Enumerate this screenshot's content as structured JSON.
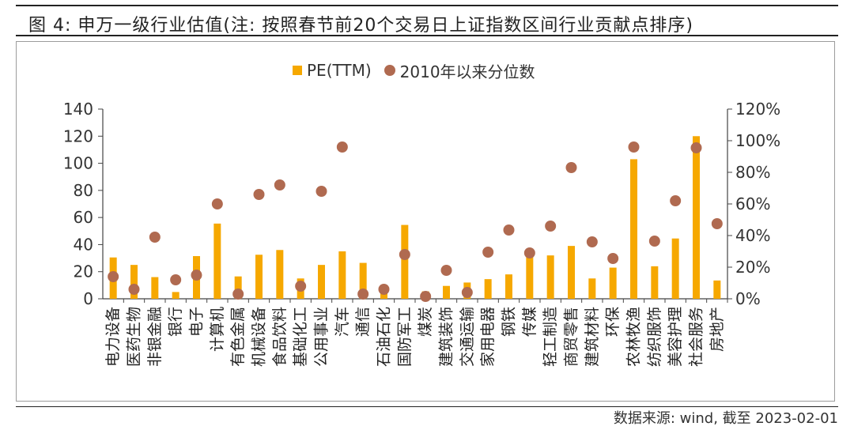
{
  "title": "图 4: 申万一级行业估值(注: 按照春节前20个交易日上证指数区间行业贡献点排序)",
  "source": "数据来源: wind, 截至 2023-02-01",
  "colors": {
    "bar": "#f6a800",
    "dot": "#b06a50",
    "axis": "#444444"
  },
  "chart_data": {
    "type": "bar",
    "categories": [
      "电力设备",
      "医药生物",
      "非银金融",
      "银行",
      "电子",
      "计算机",
      "有色金属",
      "机械设备",
      "食品饮料",
      "基础化工",
      "公用事业",
      "汽车",
      "通信",
      "石油石化",
      "国防军工",
      "煤炭",
      "建筑装饰",
      "交通运输",
      "家用电器",
      "钢铁",
      "传媒",
      "轻工制造",
      "商贸零售",
      "建筑材料",
      "环保",
      "农林牧渔",
      "纺织服饰",
      "美容护理",
      "社会服务",
      "房地产"
    ],
    "series": [
      {
        "name": "PE(TTM)",
        "type": "bar",
        "axis": "left",
        "values": [
          30.5,
          25,
          16,
          5,
          31.5,
          55.5,
          16.5,
          32.5,
          36,
          15,
          25,
          35,
          26.5,
          10,
          54.5,
          5.5,
          9.5,
          12,
          14.5,
          18,
          33,
          32,
          39,
          15,
          23,
          103,
          24,
          44.5,
          120,
          13.5
        ]
      },
      {
        "name": "2010年以来分位数",
        "type": "scatter",
        "axis": "right",
        "values": [
          14,
          6,
          39,
          12,
          15,
          60,
          3,
          66,
          72,
          8,
          68,
          96,
          3,
          6,
          28,
          1.5,
          18,
          4,
          29.5,
          43.5,
          29,
          46,
          83,
          36,
          25.5,
          96,
          36.5,
          62,
          95.5,
          47.5
        ]
      }
    ],
    "y_left": {
      "min": 0,
      "max": 140,
      "ticks": [
        0,
        20,
        40,
        60,
        80,
        100,
        120,
        140
      ]
    },
    "y_right": {
      "min": 0,
      "max": 120,
      "ticks": [
        "0%",
        "20%",
        "40%",
        "60%",
        "80%",
        "100%",
        "120%"
      ]
    },
    "legend": "top-center",
    "grid": false
  }
}
